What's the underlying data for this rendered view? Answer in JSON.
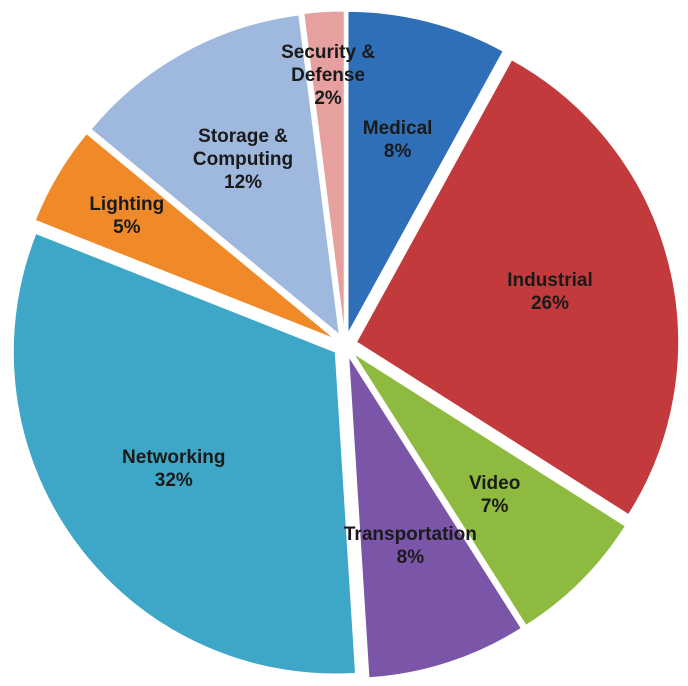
{
  "chart_data": {
    "type": "pie",
    "categories": [
      "Medical",
      "Industrial",
      "Video",
      "Transportation",
      "Networking",
      "Lighting",
      "Storage & Computing",
      "Security & Defense"
    ],
    "values": [
      8,
      26,
      7,
      8,
      32,
      5,
      12,
      2
    ],
    "value_labels": [
      "8%",
      "26%",
      "7%",
      "8%",
      "32%",
      "5%",
      "12%",
      "2%"
    ],
    "colors": [
      "#2f6fb8",
      "#c23a3c",
      "#8fba40",
      "#7b56a8",
      "#3ea7c8",
      "#f08a28",
      "#9fb9de",
      "#e6a0a0"
    ]
  }
}
